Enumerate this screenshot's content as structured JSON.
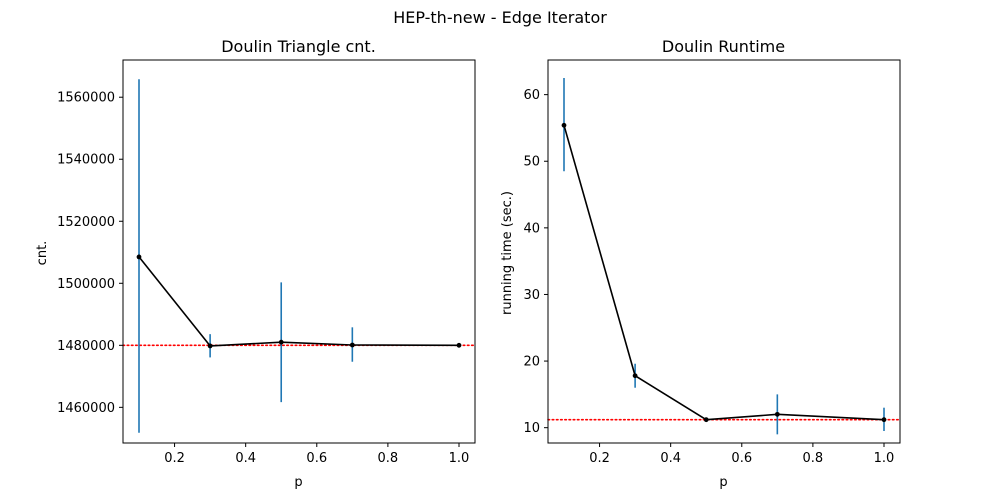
{
  "figure": {
    "suptitle": "HEP-th-new - Edge Iterator"
  },
  "chart_data": [
    {
      "type": "line",
      "title": "Doulin Triangle cnt.",
      "xlabel": "p",
      "ylabel": "cnt.",
      "xlim": [
        0.055,
        1.045
      ],
      "ylim": [
        1448500,
        1572000
      ],
      "xticks": [
        0.2,
        0.4,
        0.6,
        0.8,
        1.0
      ],
      "xtick_labels": [
        "0.2",
        "0.4",
        "0.6",
        "0.8",
        "1.0"
      ],
      "yticks": [
        1460000,
        1480000,
        1500000,
        1520000,
        1540000,
        1560000
      ],
      "ytick_labels": [
        "1460000",
        "1480000",
        "1500000",
        "1520000",
        "1540000",
        "1560000"
      ],
      "grid": false,
      "series": [
        {
          "x": [
            0.1,
            0.3,
            0.5,
            0.7,
            1.0
          ],
          "y": [
            1508500,
            1479800,
            1481000,
            1480100,
            1480000
          ],
          "yerr_low": [
            1451800,
            1476100,
            1461700,
            1474700,
            1480000
          ],
          "yerr_high": [
            1565800,
            1483600,
            1500300,
            1485800,
            1480000
          ],
          "color": "#000000",
          "errcolor": "#1f77b4"
        }
      ],
      "hline": {
        "y": 1480000,
        "color": "#ff0000",
        "style": "dotted"
      }
    },
    {
      "type": "line",
      "title": "Doulin Runtime",
      "xlabel": "p",
      "ylabel": "running time (sec.)",
      "xlim": [
        0.055,
        1.045
      ],
      "ylim": [
        7.7,
        65.2
      ],
      "xticks": [
        0.2,
        0.4,
        0.6,
        0.8,
        1.0
      ],
      "xtick_labels": [
        "0.2",
        "0.4",
        "0.6",
        "0.8",
        "1.0"
      ],
      "yticks": [
        10,
        20,
        30,
        40,
        50,
        60
      ],
      "ytick_labels": [
        "10",
        "20",
        "30",
        "40",
        "50",
        "60"
      ],
      "grid": false,
      "series": [
        {
          "x": [
            0.1,
            0.3,
            0.5,
            0.7,
            1.0
          ],
          "y": [
            55.4,
            17.8,
            11.2,
            12.0,
            11.2
          ],
          "yerr_low": [
            48.5,
            16.0,
            11.2,
            9.0,
            9.5
          ],
          "yerr_high": [
            62.5,
            19.6,
            11.2,
            15.0,
            13.0
          ],
          "color": "#000000",
          "errcolor": "#1f77b4"
        }
      ],
      "hline": {
        "y": 11.2,
        "color": "#ff0000",
        "style": "dotted"
      }
    }
  ]
}
